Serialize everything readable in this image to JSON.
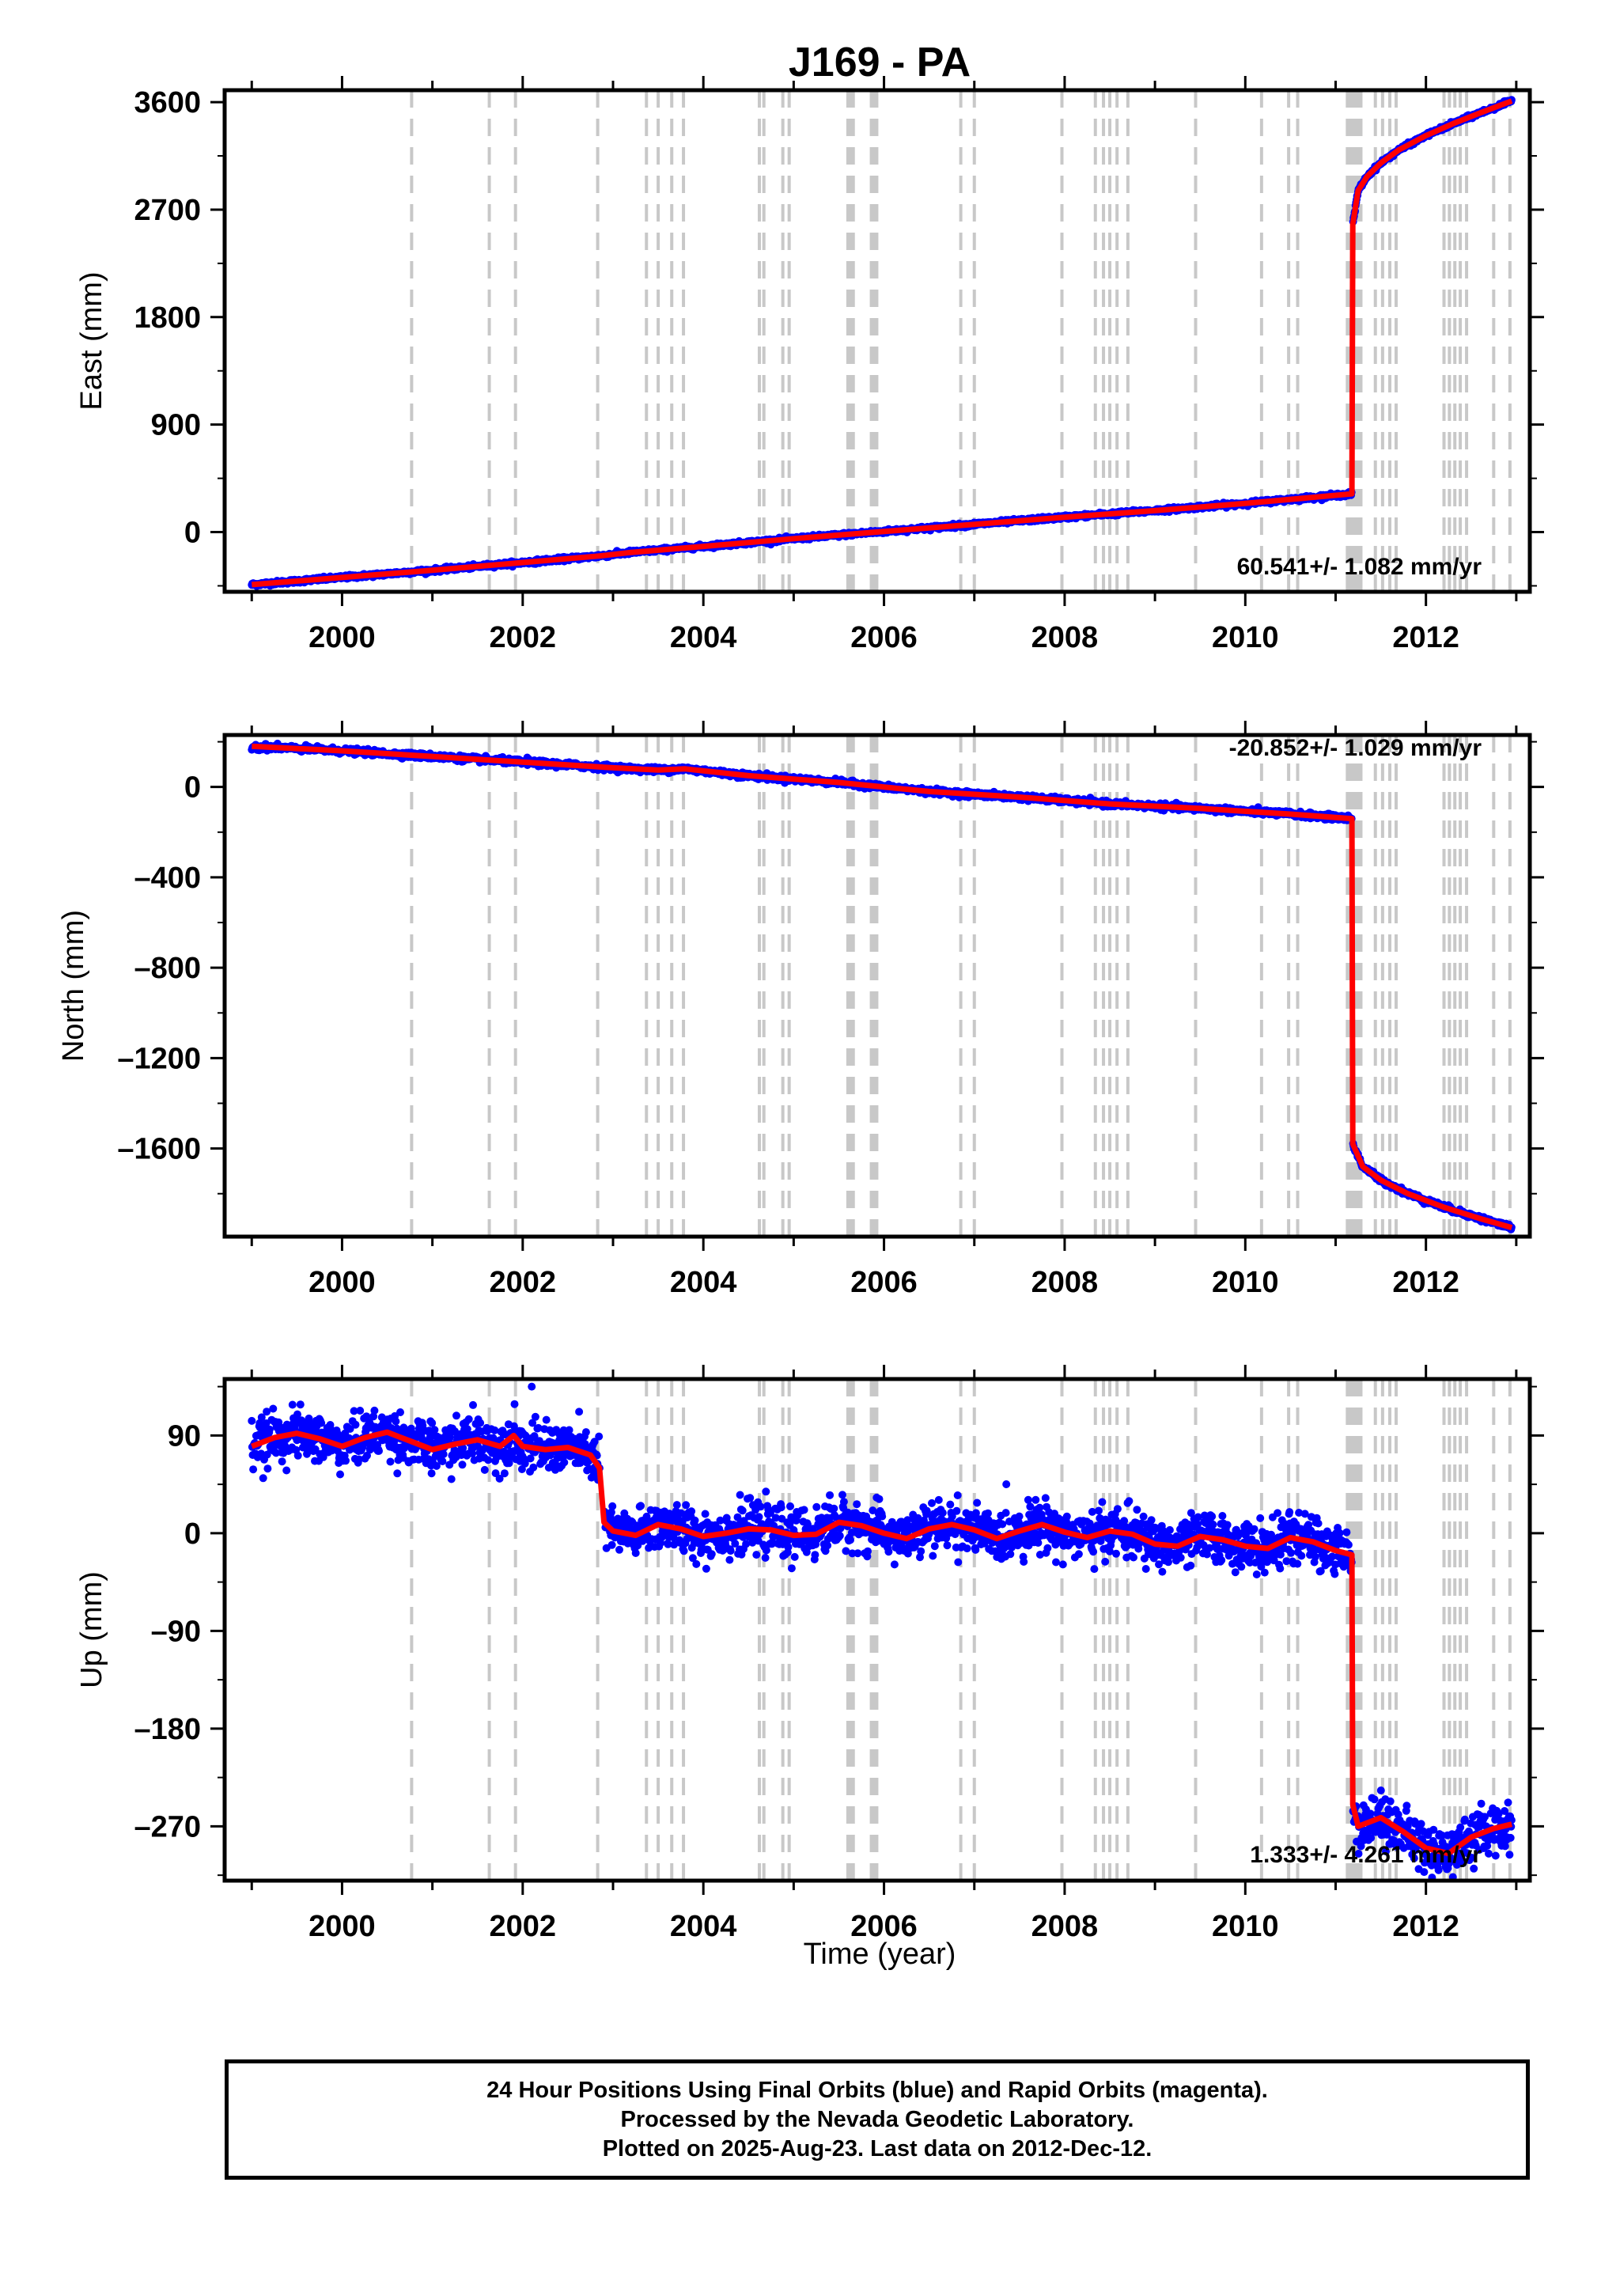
{
  "title": "J169 - PA",
  "xlabel": "Time (year)",
  "footer": {
    "line1": "24 Hour Positions Using Final Orbits (blue) and Rapid Orbits (magenta).",
    "line2": "Processed by the Nevada Geodetic Laboratory.",
    "line3": "Plotted on 2025-Aug-23. Last data on 2012-Dec-12."
  },
  "colors": {
    "data_points": "#0000ff",
    "model_line": "#ff0000",
    "event_lines": "#c8c8c8",
    "frame": "#000000"
  },
  "chart_data": [
    {
      "type": "scatter",
      "ylabel": "East (mm)",
      "rate_text": "60.541+/- 1.082 mm/yr",
      "xlim": [
        1998.7,
        2013.15
      ],
      "ylim": [
        -500,
        3700
      ],
      "yticks": [
        0,
        900,
        1800,
        2700,
        3600
      ],
      "ytick_labels": [
        "0",
        "900",
        "1800",
        "2700",
        "3600"
      ],
      "xticks": [
        2000,
        2002,
        2004,
        2006,
        2008,
        2010,
        2012
      ],
      "xtick_labels": [
        "2000",
        "2002",
        "2004",
        "2006",
        "2008",
        "2010",
        "2012"
      ],
      "series": [
        {
          "x": [
            1999.0,
            2000.0,
            2001.0,
            2002.0,
            2002.85,
            2003.2,
            2004.0,
            2005.0,
            2006.0,
            2007.0,
            2008.0,
            2009.0,
            2010.0,
            2011.18,
            2011.19,
            2011.25,
            2011.35,
            2011.5,
            2011.7,
            2012.0,
            2012.3,
            2012.6,
            2012.95
          ],
          "y": [
            -440,
            -380,
            -320,
            -255,
            -200,
            -170,
            -120,
            -55,
            5,
            65,
            125,
            180,
            240,
            320,
            2580,
            2860,
            2980,
            3090,
            3200,
            3320,
            3420,
            3510,
            3610
          ]
        }
      ],
      "noise_mm": 8
    },
    {
      "type": "scatter",
      "ylabel": "North (mm)",
      "rate_text": "-20.852+/- 1.029 mm/yr",
      "xlim": [
        1998.7,
        2013.15
      ],
      "ylim": [
        -1990,
        230
      ],
      "yticks": [
        -1600,
        -1200,
        -800,
        -400,
        0
      ],
      "ytick_labels": [
        "–1600",
        "–1200",
        "–800",
        "–400",
        "0"
      ],
      "xticks": [
        2000,
        2002,
        2004,
        2006,
        2008,
        2010,
        2012
      ],
      "xtick_labels": [
        "2000",
        "2002",
        "2004",
        "2006",
        "2008",
        "2010",
        "2012"
      ],
      "series": [
        {
          "x": [
            1999.0,
            2000.0,
            2001.0,
            2002.0,
            2003.0,
            2003.5,
            2003.8,
            2004.5,
            2005.5,
            2006.5,
            2007.5,
            2008.5,
            2009.5,
            2010.5,
            2011.18,
            2011.19,
            2011.3,
            2011.5,
            2011.8,
            2012.2,
            2012.6,
            2012.95
          ],
          "y": [
            180,
            160,
            135,
            110,
            85,
            75,
            80,
            50,
            20,
            -20,
            -45,
            -75,
            -95,
            -120,
            -140,
            -1580,
            -1680,
            -1740,
            -1800,
            -1860,
            -1910,
            -1950
          ]
        }
      ],
      "noise_mm": 6
    },
    {
      "type": "scatter",
      "ylabel": "Up (mm)",
      "rate_text": "1.333+/- 4.261 mm/yr",
      "xlim": [
        1998.7,
        2013.15
      ],
      "ylim": [
        -320,
        142
      ],
      "yticks": [
        -270,
        -180,
        -90,
        0,
        90
      ],
      "ytick_labels": [
        "–270",
        "–180",
        "–90",
        "0",
        "90"
      ],
      "xticks": [
        2000,
        2002,
        2004,
        2006,
        2008,
        2010,
        2012
      ],
      "xtick_labels": [
        "2000",
        "2002",
        "2004",
        "2006",
        "2008",
        "2010",
        "2012"
      ],
      "series": [
        {
          "x": [
            1999.0,
            1999.25,
            1999.5,
            1999.75,
            2000.0,
            2000.25,
            2000.5,
            2000.75,
            2001.0,
            2001.25,
            2001.5,
            2001.75,
            2001.9,
            2002.0,
            2002.25,
            2002.5,
            2002.75,
            2002.85,
            2002.9,
            2003.0,
            2003.25,
            2003.5,
            2003.75,
            2004.0,
            2004.25,
            2004.5,
            2004.75,
            2005.0,
            2005.25,
            2005.5,
            2005.75,
            2006.0,
            2006.25,
            2006.5,
            2006.75,
            2007.0,
            2007.25,
            2007.5,
            2007.75,
            2008.0,
            2008.25,
            2008.5,
            2008.75,
            2009.0,
            2009.25,
            2009.5,
            2009.75,
            2010.0,
            2010.25,
            2010.5,
            2010.75,
            2011.0,
            2011.18,
            2011.19,
            2011.25,
            2011.5,
            2011.75,
            2012.0,
            2012.25,
            2012.5,
            2012.75,
            2012.95
          ],
          "y": [
            80,
            88,
            92,
            87,
            80,
            88,
            93,
            85,
            77,
            82,
            86,
            80,
            90,
            80,
            77,
            79,
            72,
            60,
            10,
            2,
            -2,
            8,
            4,
            -3,
            0,
            4,
            3,
            -2,
            -1,
            10,
            7,
            0,
            -5,
            4,
            8,
            3,
            -5,
            2,
            8,
            1,
            -4,
            2,
            -1,
            -10,
            -12,
            -3,
            -6,
            -12,
            -14,
            -4,
            -8,
            -16,
            -20,
            -250,
            -270,
            -262,
            -275,
            -290,
            -295,
            -280,
            -272,
            -268
          ],
          "model_y": [
            80,
            88,
            92,
            87,
            80,
            88,
            93,
            85,
            77,
            82,
            86,
            80,
            90,
            80,
            77,
            79,
            72,
            60,
            10,
            2,
            -2,
            8,
            4,
            -3,
            0,
            4,
            3,
            -2,
            -1,
            10,
            7,
            0,
            -5,
            4,
            8,
            3,
            -5,
            2,
            8,
            1,
            -4,
            2,
            -1,
            -10,
            -12,
            -3,
            -6,
            -12,
            -14,
            -4,
            -8,
            -16,
            -20,
            -250,
            -270,
            -262,
            -275,
            -290,
            -295,
            -280,
            -272,
            -268
          ]
        }
      ],
      "noise_mm": 11
    }
  ],
  "event_lines": [
    2000.77,
    2001.63,
    2001.92,
    2002.83,
    2003.37,
    2003.5,
    2003.65,
    2003.78,
    2004.62,
    2004.67,
    2004.88,
    2004.95,
    2005.6,
    2005.63,
    2005.66,
    2005.86,
    2005.89,
    2005.92,
    2006.85,
    2007.0,
    2007.97,
    2008.34,
    2008.43,
    2008.5,
    2008.58,
    2008.7,
    2009.45,
    2010.18,
    2010.48,
    2010.58,
    2011.13,
    2011.16,
    2011.19,
    2011.22,
    2011.25,
    2011.28,
    2011.44,
    2011.52,
    2011.6,
    2011.67,
    2012.2,
    2012.26,
    2012.32,
    2012.38,
    2012.45,
    2012.75,
    2012.93
  ]
}
